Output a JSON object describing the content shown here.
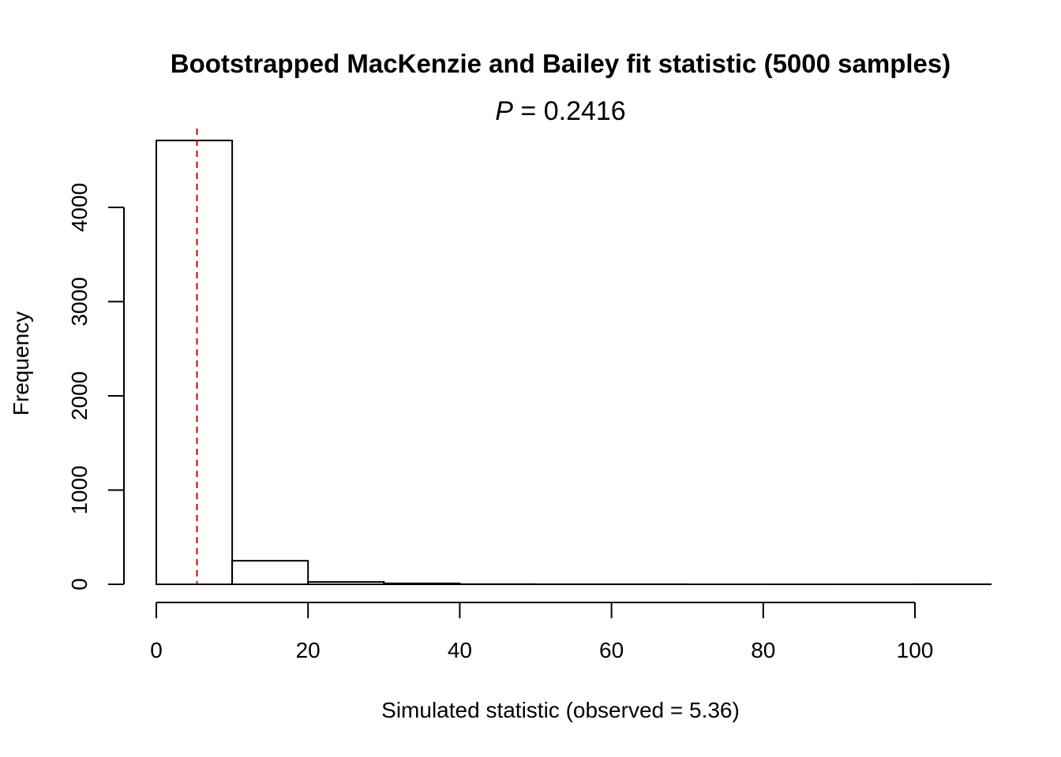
{
  "chart_data": {
    "type": "histogram",
    "title": "Bootstrapped MacKenzie and Bailey fit statistic (5000 samples)",
    "subtitle_var": "P",
    "subtitle_rest": " = 0.2416",
    "xlabel": "Simulated statistic (observed = 5.36)",
    "ylabel": "Frequency",
    "xlim": [
      0,
      110
    ],
    "ylim": [
      0,
      4710
    ],
    "x_ticks": [
      0,
      20,
      40,
      60,
      80,
      100
    ],
    "y_ticks": [
      0,
      1000,
      2000,
      3000,
      4000
    ],
    "bins": [
      {
        "from": 0,
        "to": 10,
        "count": 4710
      },
      {
        "from": 10,
        "to": 20,
        "count": 250
      },
      {
        "from": 20,
        "to": 30,
        "count": 25
      },
      {
        "from": 30,
        "to": 40,
        "count": 10
      },
      {
        "from": 40,
        "to": 50,
        "count": 2
      },
      {
        "from": 50,
        "to": 60,
        "count": 1
      },
      {
        "from": 60,
        "to": 70,
        "count": 1
      },
      {
        "from": 70,
        "to": 80,
        "count": 0
      },
      {
        "from": 80,
        "to": 90,
        "count": 0
      },
      {
        "from": 90,
        "to": 100,
        "count": 0
      },
      {
        "from": 100,
        "to": 110,
        "count": 1
      }
    ],
    "observed_value": 5.36,
    "observed_line_color": "#cc0000",
    "grid": false,
    "legend": "none"
  }
}
